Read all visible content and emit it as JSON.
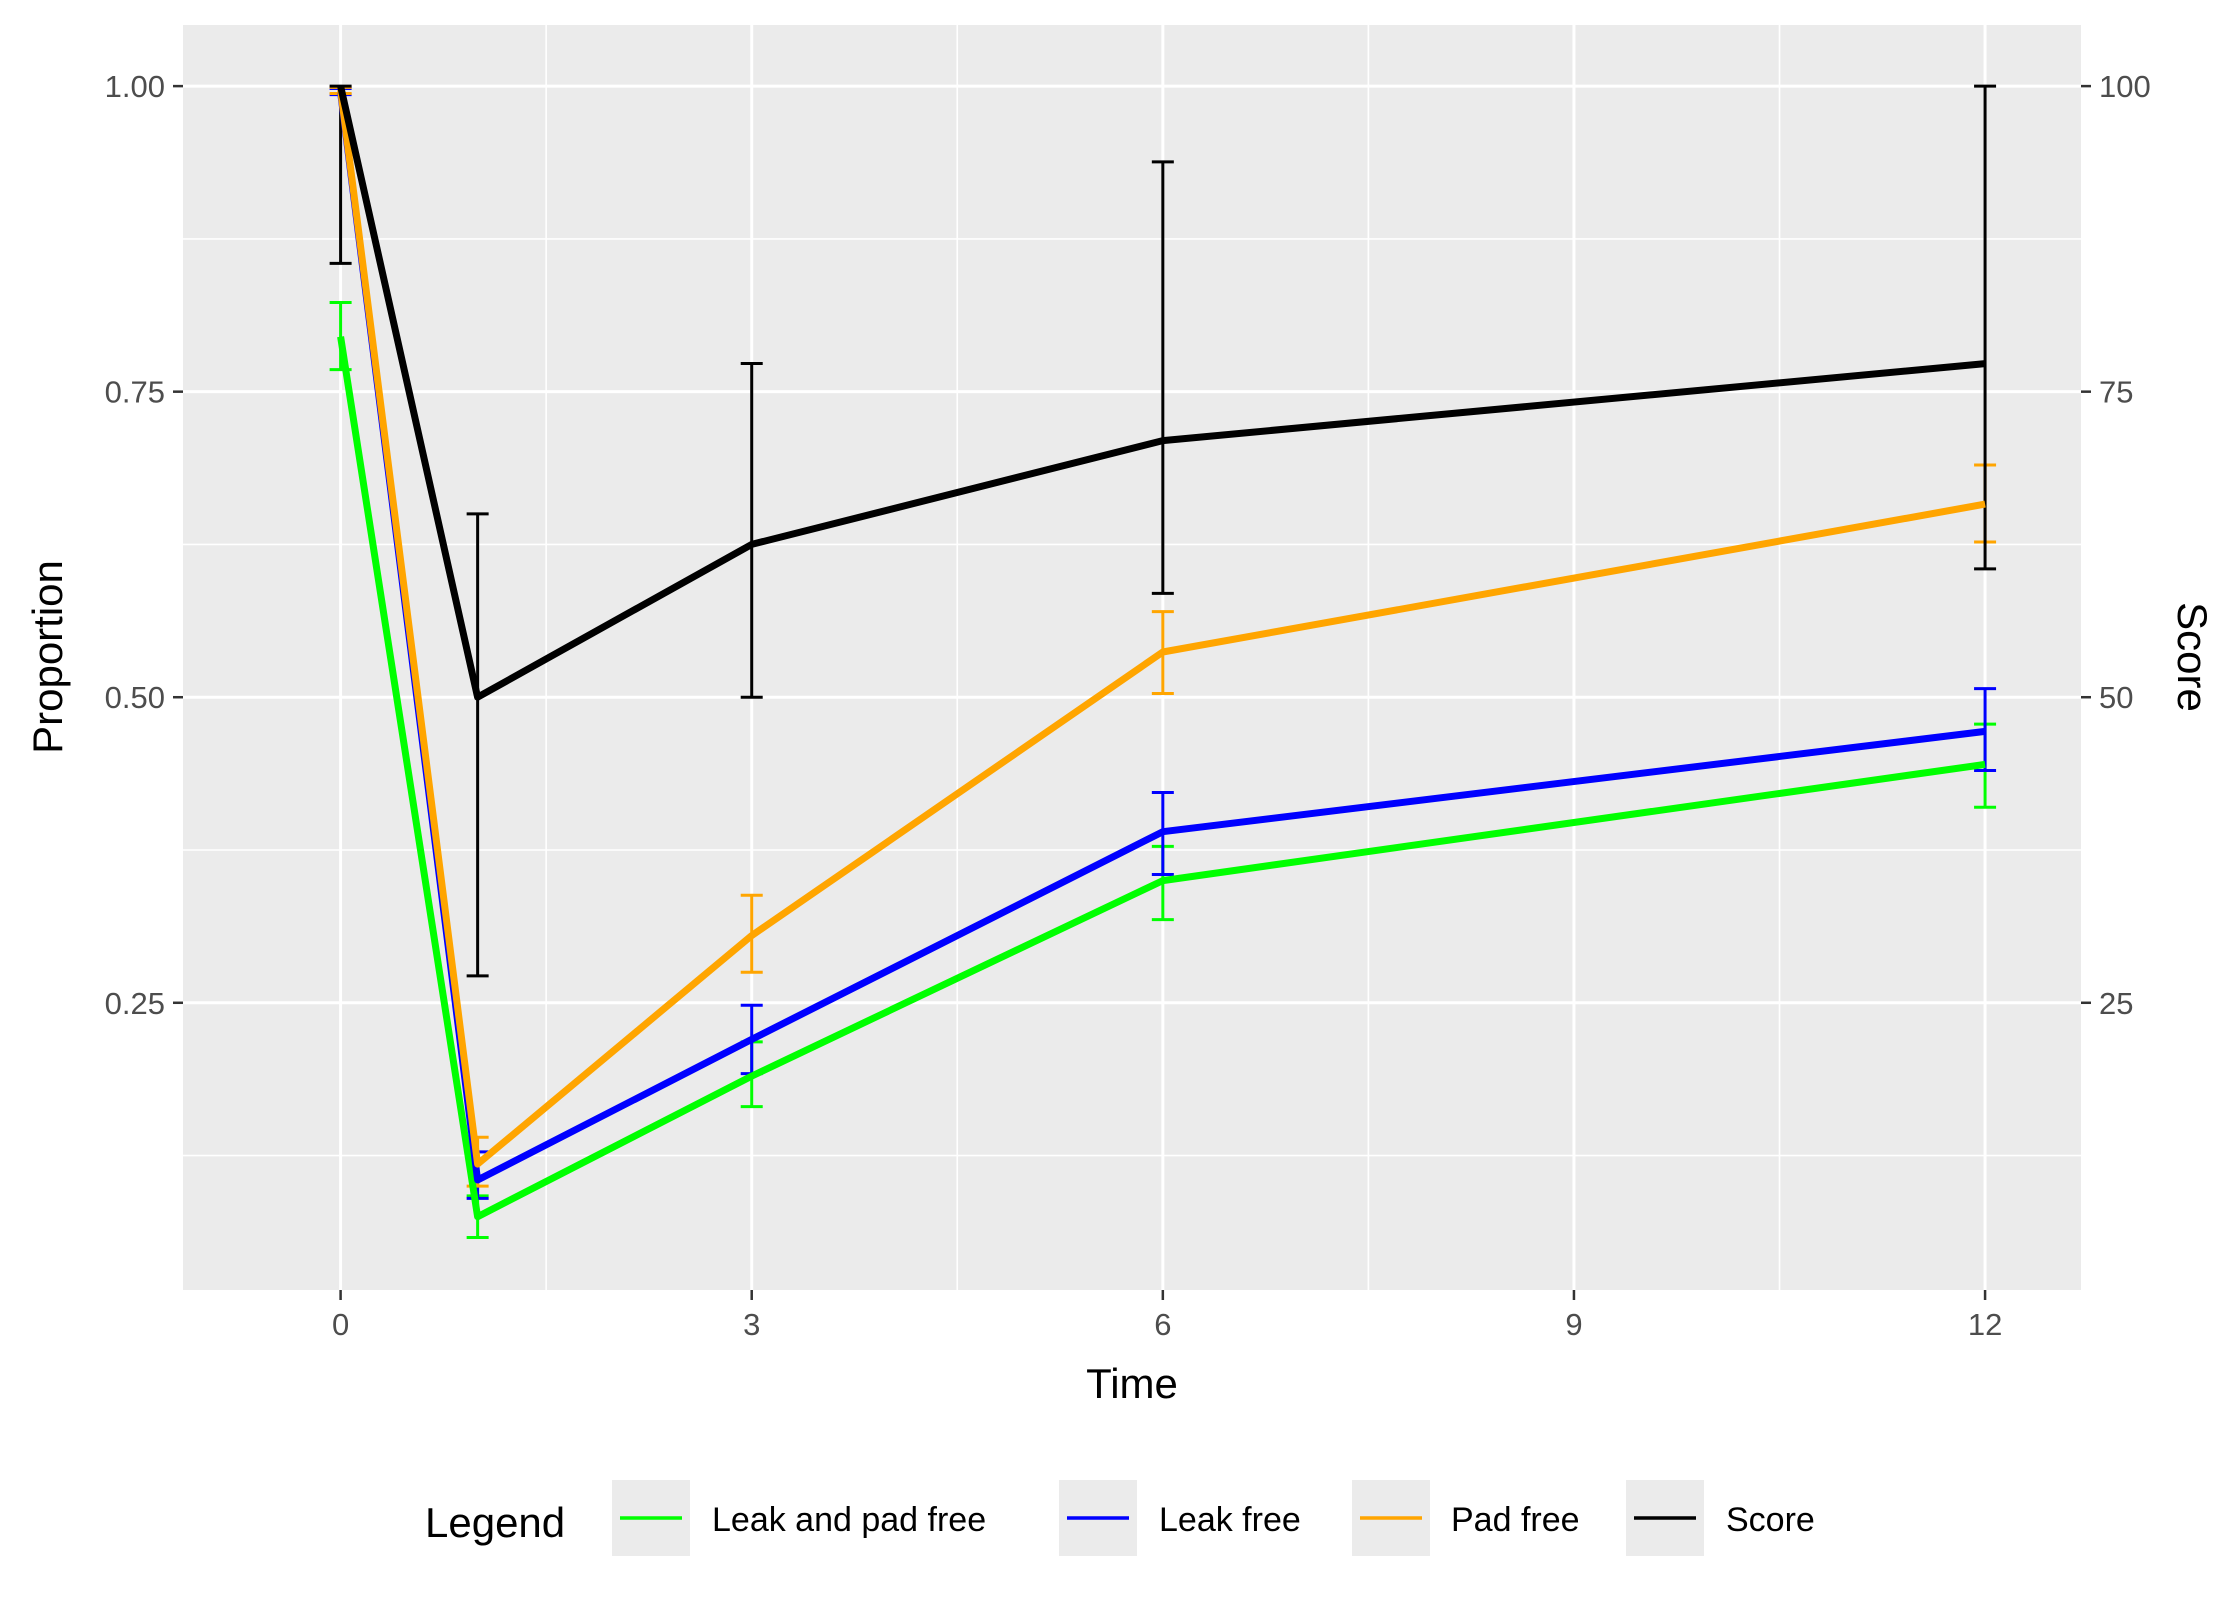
{
  "chart_data": {
    "type": "line",
    "xlabel": "Time",
    "ylabel": "Proportion",
    "y2label": "Score",
    "xlim": [
      -1.15,
      12.7
    ],
    "ylim": [
      0.015,
      1.05
    ],
    "y2lim": [
      1.5,
      105
    ],
    "xticks": [
      0,
      3,
      6,
      9,
      12
    ],
    "xtick_labels": [
      "0",
      "3",
      "6",
      "9",
      "12"
    ],
    "yticks": [
      0.25,
      0.5,
      0.75,
      1.0
    ],
    "ytick_labels": [
      "0.25",
      "0.50",
      "0.75",
      "1.00"
    ],
    "y2ticks": [
      25,
      50,
      75,
      100
    ],
    "y2tick_labels": [
      "25",
      "50",
      "75",
      "100"
    ],
    "grid": true,
    "legend_position": "bottom",
    "legend_title": "Legend",
    "x": [
      0,
      1,
      3,
      6,
      12
    ],
    "series": [
      {
        "name": "Leak and pad free",
        "axis": "left",
        "color": "#00ff00",
        "values": [
          0.795,
          0.075,
          0.19,
          0.35,
          0.445
        ],
        "error_low": [
          0.768,
          0.058,
          0.165,
          0.318,
          0.41
        ],
        "error_high": [
          0.823,
          0.092,
          0.218,
          0.378,
          0.478
        ]
      },
      {
        "name": "Leak free",
        "axis": "left",
        "color": "#0000ff",
        "values": [
          0.995,
          0.105,
          0.22,
          0.39,
          0.472
        ],
        "error_low": [
          0.993,
          0.09,
          0.192,
          0.355,
          0.44
        ],
        "error_high": [
          0.998,
          0.128,
          0.248,
          0.422,
          0.507
        ]
      },
      {
        "name": "Pad free",
        "axis": "left",
        "color": "#ffa500",
        "values": [
          0.997,
          0.118,
          0.305,
          0.537,
          0.658
        ],
        "error_low": [
          0.994,
          0.1,
          0.275,
          0.503,
          0.627
        ],
        "error_high": [
          0.999,
          0.14,
          0.338,
          0.57,
          0.69
        ]
      },
      {
        "name": "Score",
        "axis": "right",
        "color": "#000000",
        "values": [
          100,
          50,
          62.5,
          71,
          77.3
        ],
        "error_low": [
          85.5,
          27.2,
          50,
          58.5,
          60.5
        ],
        "error_high": [
          100,
          65,
          77.3,
          93.8,
          100
        ]
      }
    ]
  }
}
